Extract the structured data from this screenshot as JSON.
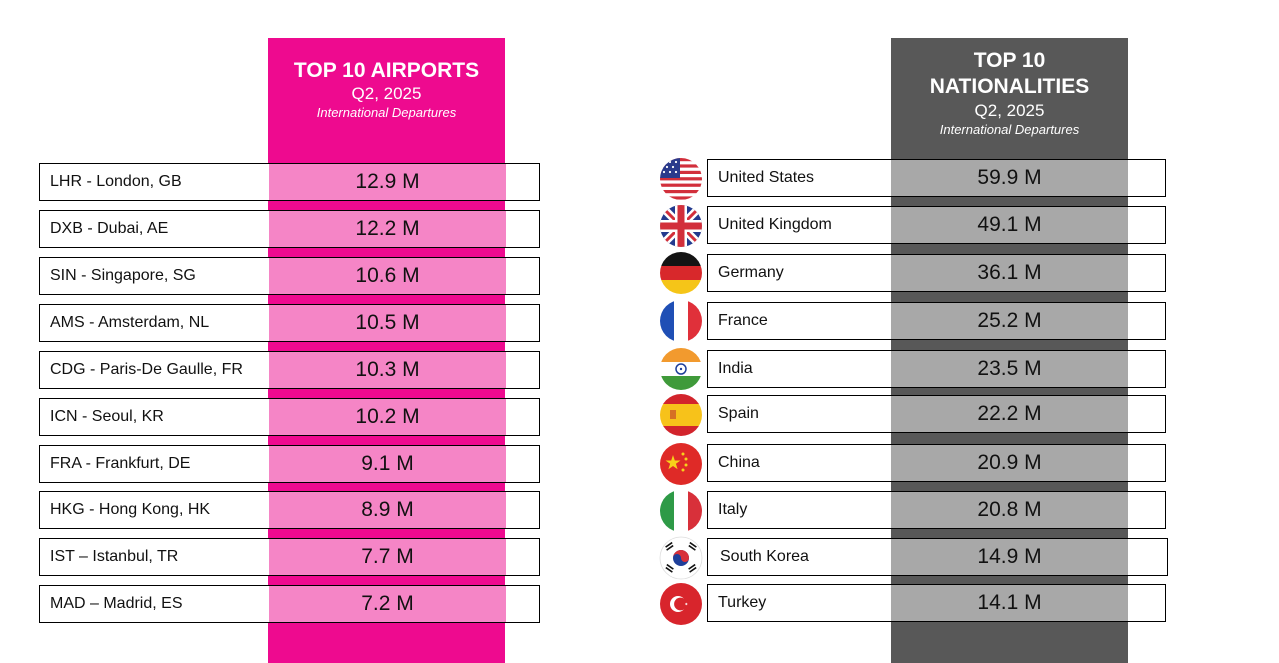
{
  "airports": {
    "title": "TOP 10 AIRPORTS",
    "period": "Q2, 2025",
    "subtitle": "International Departures",
    "rows": [
      {
        "label": "LHR - London, GB",
        "value": "12.9 M"
      },
      {
        "label": "DXB - Dubai, AE",
        "value": "12.2 M"
      },
      {
        "label": "SIN - Singapore, SG",
        "value": "10.6 M"
      },
      {
        "label": "AMS - Amsterdam, NL",
        "value": "10.5 M"
      },
      {
        "label": "CDG - Paris-De Gaulle, FR",
        "value": "10.3 M"
      },
      {
        "label": "ICN - Seoul, KR",
        "value": "10.2 M"
      },
      {
        "label": "FRA - Frankfurt, DE",
        "value": "9.1 M"
      },
      {
        "label": "HKG - Hong Kong, HK",
        "value": "8.9 M"
      },
      {
        "label": "IST – Istanbul, TR",
        "value": "7.7 M"
      },
      {
        "label": "MAD – Madrid, ES",
        "value": "7.2 M"
      }
    ]
  },
  "nationalities": {
    "title_line1": "TOP 10",
    "title_line2": "NATIONALITIES",
    "period": "Q2, 2025",
    "subtitle": "International Departures",
    "rows": [
      {
        "label": "United States",
        "value": "59.9 M",
        "flag": "us-flag-icon"
      },
      {
        "label": "United Kingdom",
        "value": "49.1 M",
        "flag": "uk-flag-icon"
      },
      {
        "label": "Germany",
        "value": "36.1 M",
        "flag": "germany-flag-icon"
      },
      {
        "label": "France",
        "value": "25.2 M",
        "flag": "france-flag-icon"
      },
      {
        "label": "India",
        "value": "23.5 M",
        "flag": "india-flag-icon"
      },
      {
        "label": "Spain",
        "value": "22.2 M",
        "flag": "spain-flag-icon"
      },
      {
        "label": "China",
        "value": "20.9 M",
        "flag": "china-flag-icon"
      },
      {
        "label": "Italy",
        "value": "20.8 M",
        "flag": "italy-flag-icon"
      },
      {
        "label": "South Korea",
        "value": "14.9 M",
        "flag": "south-korea-flag-icon"
      },
      {
        "label": "Turkey",
        "value": "14.1 M",
        "flag": "turkey-flag-icon"
      }
    ]
  },
  "colors": {
    "airports_accent": "#ee0a8f",
    "airports_value_bg": "#f585c6",
    "nationalities_accent": "#585858",
    "nationalities_value_bg": "#a8a8a8"
  },
  "chart_data": [
    {
      "type": "table",
      "title": "TOP 10 AIRPORTS",
      "subtitle": "International Departures",
      "period": "Q2, 2025",
      "categories": [
        "LHR - London, GB",
        "DXB - Dubai, AE",
        "SIN - Singapore, SG",
        "AMS - Amsterdam, NL",
        "CDG - Paris-De Gaulle, FR",
        "ICN - Seoul, KR",
        "FRA - Frankfurt, DE",
        "HKG - Hong Kong, HK",
        "IST – Istanbul, TR",
        "MAD – Madrid, ES"
      ],
      "values": [
        12.9,
        12.2,
        10.6,
        10.5,
        10.3,
        10.2,
        9.1,
        8.9,
        7.7,
        7.2
      ],
      "unit": "M"
    },
    {
      "type": "table",
      "title": "TOP 10 NATIONALITIES",
      "subtitle": "International Departures",
      "period": "Q2, 2025",
      "categories": [
        "United States",
        "United Kingdom",
        "Germany",
        "France",
        "India",
        "Spain",
        "China",
        "Italy",
        "South Korea",
        "Turkey"
      ],
      "values": [
        59.9,
        49.1,
        36.1,
        25.2,
        23.5,
        22.2,
        20.9,
        20.8,
        14.9,
        14.1
      ],
      "unit": "M"
    }
  ]
}
